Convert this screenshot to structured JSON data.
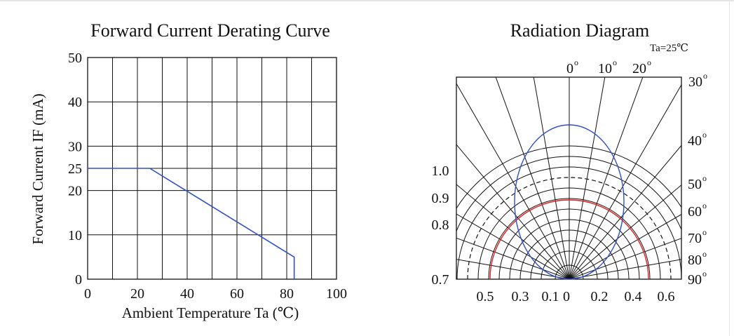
{
  "chart_data": [
    {
      "type": "line",
      "title": "Forward Current Derating Curve",
      "xlabel": "Ambient Temperature Ta (℃)",
      "ylabel": "Forward Current IF (mA)",
      "xlim": [
        0,
        100
      ],
      "ylim": [
        0,
        50
      ],
      "x_ticks": [
        "0",
        "20",
        "40",
        "60",
        "80",
        "100"
      ],
      "y_ticks": [
        "0",
        "10",
        "20",
        "25",
        "30",
        "40",
        "50"
      ],
      "grid": true,
      "line_color": "#3050c8",
      "series": [
        {
          "x": [
            0,
            25,
            83,
            83
          ],
          "y": [
            25,
            25,
            5,
            0
          ]
        }
      ]
    },
    {
      "type": "polar",
      "title": "Radiation Diagram",
      "condition": "Ta=25℃",
      "angle_labels": [
        "0",
        "10",
        "20",
        "30",
        "40",
        "50",
        "60",
        "70",
        "80",
        "90"
      ],
      "left_labels": [
        "1.0",
        "0.9",
        "0.8",
        "0.7"
      ],
      "bottom_labels": [
        "0.5",
        "0.3",
        "0.1",
        "0",
        "0.2",
        "0.4",
        "0.6"
      ],
      "grid": true,
      "series": [
        {
          "color": "#3050c8",
          "shape": "ellipse",
          "relative_intensity": 1.0,
          "half_width": 0.68
        },
        {
          "color": "#e02020",
          "shape": "arc",
          "relative_intensity": 0.5
        }
      ]
    }
  ]
}
